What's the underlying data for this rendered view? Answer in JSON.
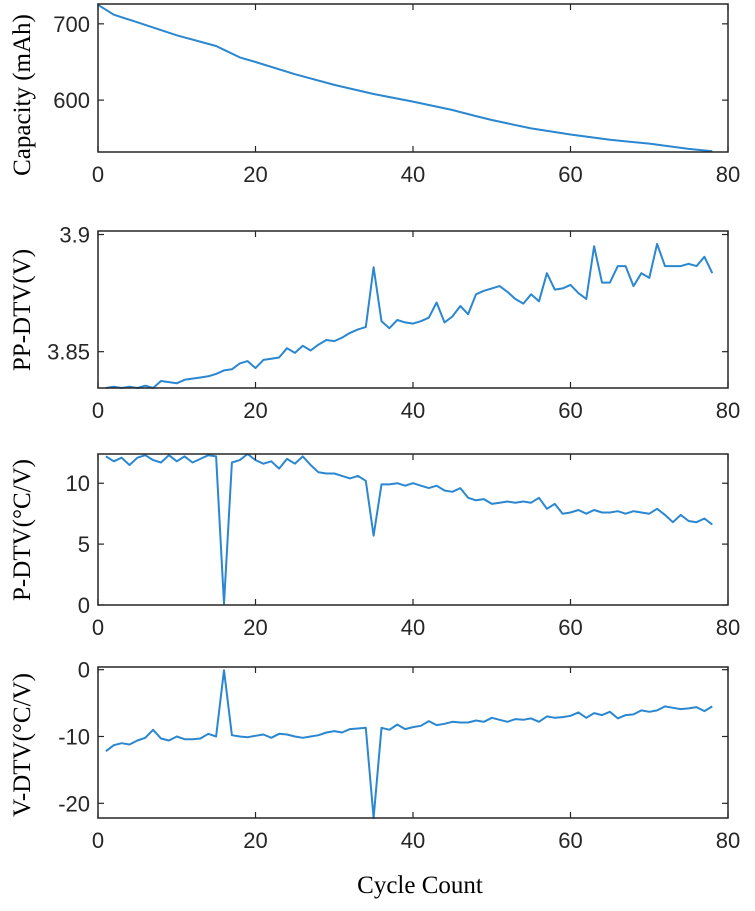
{
  "colors": {
    "line": "#2a87d0",
    "axis": "#262626"
  },
  "chart_data": [
    {
      "type": "line",
      "ylabel": "Capacity (mAh)",
      "xlabel": "",
      "xlim": [
        0,
        80
      ],
      "ylim": [
        532,
        726
      ],
      "xticks": [
        0,
        20,
        40,
        60,
        80
      ],
      "yticks": [
        600,
        700
      ],
      "ytick_labels": [
        "600",
        "700"
      ],
      "series": [
        {
          "x": [
            0,
            2,
            5,
            10,
            15,
            16,
            18,
            20,
            25,
            30,
            35,
            40,
            45,
            48,
            50,
            55,
            60,
            65,
            70,
            75,
            78
          ],
          "y": [
            725,
            712,
            702,
            685,
            671,
            666,
            656,
            650,
            634,
            620,
            608,
            598,
            587,
            579,
            574,
            563,
            555,
            548,
            543,
            536,
            533
          ]
        }
      ]
    },
    {
      "type": "line",
      "ylabel": "PP-DTV(V)",
      "xlabel": "",
      "xlim": [
        0,
        80
      ],
      "ylim": [
        3.8345,
        3.9015
      ],
      "xticks": [
        0,
        20,
        40,
        60,
        80
      ],
      "yticks": [
        3.85,
        3.9
      ],
      "ytick_labels": [
        "3.85",
        "3.9"
      ],
      "series": [
        {
          "x": [
            1,
            2,
            3,
            4,
            5,
            6,
            7,
            8,
            9,
            10,
            11,
            12,
            13,
            14,
            15,
            16,
            17,
            18,
            19,
            20,
            21,
            22,
            23,
            24,
            25,
            26,
            27,
            28,
            29,
            30,
            31,
            32,
            33,
            34,
            35,
            36,
            37,
            38,
            39,
            40,
            41,
            42,
            43,
            44,
            45,
            46,
            47,
            48,
            49,
            50,
            51,
            52,
            53,
            54,
            55,
            56,
            57,
            58,
            59,
            60,
            61,
            62,
            63,
            64,
            65,
            66,
            67,
            68,
            69,
            70,
            71,
            72,
            73,
            74,
            75,
            76,
            77,
            78
          ],
          "y": [
            3.8345,
            3.835,
            3.8345,
            3.835,
            3.8345,
            3.8355,
            3.8345,
            3.8375,
            3.837,
            3.8365,
            3.838,
            3.8385,
            3.839,
            3.8395,
            3.8405,
            3.842,
            3.8425,
            3.845,
            3.846,
            3.843,
            3.8465,
            3.847,
            3.8475,
            3.8515,
            3.8495,
            3.8525,
            3.8505,
            3.853,
            3.855,
            3.8545,
            3.856,
            3.858,
            3.8595,
            3.8605,
            3.886,
            3.863,
            3.86,
            3.8635,
            3.8625,
            3.862,
            3.863,
            3.8645,
            3.871,
            3.8625,
            3.865,
            3.8695,
            3.866,
            3.8745,
            3.876,
            3.877,
            3.878,
            3.8755,
            3.8725,
            3.8705,
            3.8745,
            3.8715,
            3.8835,
            3.8765,
            3.877,
            3.8785,
            3.875,
            3.8725,
            3.895,
            3.8795,
            3.8795,
            3.8865,
            3.8865,
            3.878,
            3.8835,
            3.8815,
            3.896,
            3.8865,
            3.8865,
            3.8865,
            3.8875,
            3.8865,
            3.8905,
            3.8835
          ]
        }
      ]
    },
    {
      "type": "line",
      "ylabel": "P-DTV(°C/V)",
      "xlabel": "",
      "xlim": [
        0,
        80
      ],
      "ylim": [
        0,
        12.4
      ],
      "xticks": [
        0,
        20,
        40,
        60,
        80
      ],
      "yticks": [
        0,
        5,
        10
      ],
      "ytick_labels": [
        "0",
        "5",
        "10"
      ],
      "series": [
        {
          "x": [
            1,
            2,
            3,
            4,
            5,
            6,
            7,
            8,
            9,
            10,
            11,
            12,
            13,
            14,
            15,
            16,
            17,
            18,
            19,
            20,
            21,
            22,
            23,
            24,
            25,
            26,
            27,
            28,
            29,
            30,
            31,
            32,
            33,
            34,
            35,
            36,
            37,
            38,
            39,
            40,
            41,
            42,
            43,
            44,
            45,
            46,
            47,
            48,
            49,
            50,
            51,
            52,
            53,
            54,
            55,
            56,
            57,
            58,
            59,
            60,
            61,
            62,
            63,
            64,
            65,
            66,
            67,
            68,
            69,
            70,
            71,
            72,
            73,
            74,
            75,
            76,
            77,
            78
          ],
          "y": [
            12.2,
            11.8,
            12.1,
            11.5,
            12.1,
            12.3,
            11.9,
            11.7,
            12.3,
            11.8,
            12.2,
            11.7,
            12.0,
            12.3,
            12.2,
            0.1,
            11.7,
            11.9,
            12.4,
            11.9,
            11.6,
            11.8,
            11.2,
            12.0,
            11.6,
            12.2,
            11.5,
            10.9,
            10.8,
            10.8,
            10.6,
            10.4,
            10.6,
            10.2,
            5.7,
            9.9,
            9.9,
            10.0,
            9.8,
            10.0,
            9.8,
            9.6,
            9.8,
            9.4,
            9.3,
            9.6,
            8.8,
            8.6,
            8.7,
            8.3,
            8.4,
            8.5,
            8.4,
            8.5,
            8.4,
            8.8,
            7.9,
            8.3,
            7.5,
            7.6,
            7.8,
            7.5,
            7.8,
            7.6,
            7.6,
            7.7,
            7.5,
            7.7,
            7.6,
            7.5,
            7.9,
            7.4,
            6.8,
            7.4,
            6.9,
            6.8,
            7.1,
            6.6
          ]
        }
      ]
    },
    {
      "type": "line",
      "ylabel": "V-DTV(°C/V)",
      "xlabel": "Cycle Count",
      "xlim": [
        0,
        80
      ],
      "ylim": [
        -22.2,
        0.4
      ],
      "xticks": [
        0,
        20,
        40,
        60,
        80
      ],
      "yticks": [
        -20,
        -10,
        0
      ],
      "ytick_labels": [
        "-20",
        "-10",
        "0"
      ],
      "series": [
        {
          "x": [
            1,
            2,
            3,
            4,
            5,
            6,
            7,
            8,
            9,
            10,
            11,
            12,
            13,
            14,
            15,
            16,
            17,
            18,
            19,
            20,
            21,
            22,
            23,
            24,
            25,
            26,
            27,
            28,
            29,
            30,
            31,
            32,
            33,
            34,
            35,
            36,
            37,
            38,
            39,
            40,
            41,
            42,
            43,
            44,
            45,
            46,
            47,
            48,
            49,
            50,
            51,
            52,
            53,
            54,
            55,
            56,
            57,
            58,
            59,
            60,
            61,
            62,
            63,
            64,
            65,
            66,
            67,
            68,
            69,
            70,
            71,
            72,
            73,
            74,
            75,
            76,
            77,
            78
          ],
          "y": [
            -12.2,
            -11.3,
            -11.0,
            -11.2,
            -10.6,
            -10.2,
            -9.0,
            -10.3,
            -10.6,
            -10.0,
            -10.4,
            -10.4,
            -10.3,
            -9.6,
            -10.0,
            -0.1,
            -9.8,
            -10.0,
            -10.1,
            -9.9,
            -9.7,
            -10.2,
            -9.6,
            -9.7,
            -10.0,
            -10.2,
            -10.0,
            -9.8,
            -9.4,
            -9.2,
            -9.4,
            -8.9,
            -8.8,
            -8.7,
            -22.2,
            -8.7,
            -9.0,
            -8.2,
            -8.9,
            -8.6,
            -8.4,
            -7.7,
            -8.3,
            -8.1,
            -7.8,
            -7.9,
            -7.9,
            -7.6,
            -7.8,
            -7.2,
            -7.5,
            -7.8,
            -7.4,
            -7.5,
            -7.3,
            -7.8,
            -7.0,
            -7.2,
            -7.1,
            -6.9,
            -6.4,
            -7.2,
            -6.5,
            -6.8,
            -6.3,
            -7.3,
            -6.8,
            -6.7,
            -6.1,
            -6.3,
            -6.1,
            -5.5,
            -5.7,
            -5.9,
            -5.8,
            -5.6,
            -6.2,
            -5.5
          ]
        }
      ]
    }
  ]
}
